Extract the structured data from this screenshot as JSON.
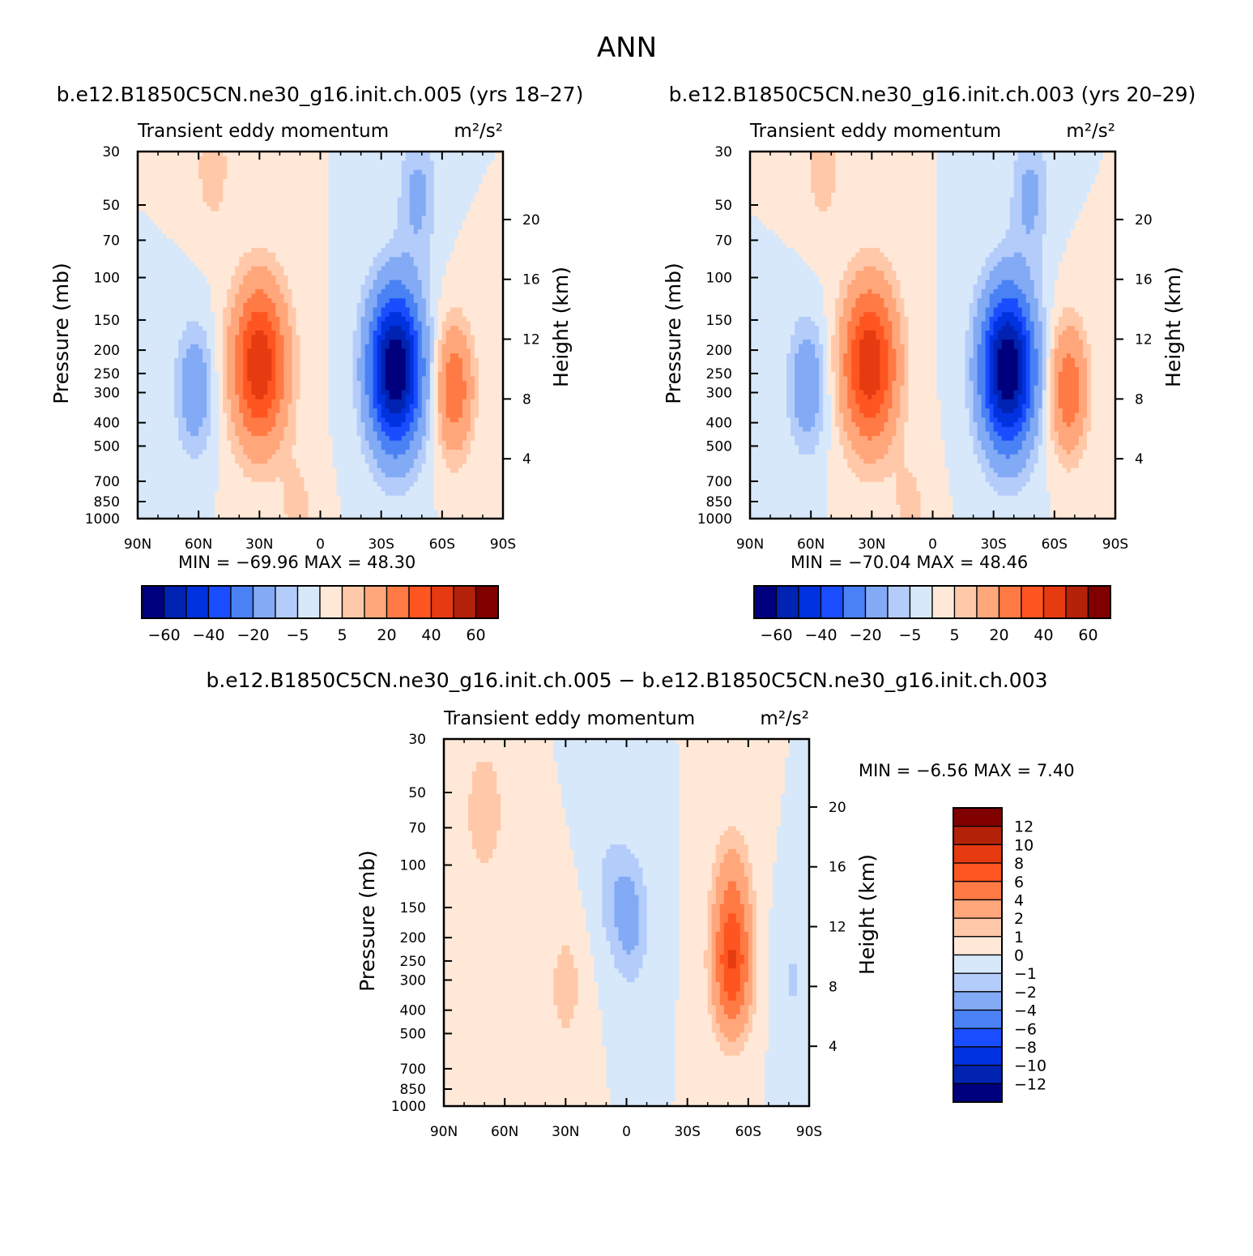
{
  "page_title": "ANN",
  "colors": {
    "seq": [
      "#00007f",
      "#0023b2",
      "#0032e0",
      "#1a4dff",
      "#4a82f5",
      "#82aaf5",
      "#b4ccfa",
      "#d7e8fa",
      "#ffe8d7",
      "#ffc8a9",
      "#ffa67a",
      "#ff7a45",
      "#ff5520",
      "#e63a10",
      "#b42209",
      "#800000"
    ]
  },
  "chart_data": [
    {
      "type": "heatmap",
      "title": "b.e12.B1850C5CN.ne30_g16.init.ch.005 (yrs 18–27)",
      "subtitle_left": "Transient eddy momentum",
      "subtitle_right": "m²/s²",
      "ylabel": "Pressure (mb)",
      "y2label": "Height (km)",
      "x_ticks": [
        "90N",
        "60N",
        "30N",
        "0",
        "30S",
        "60S",
        "90S"
      ],
      "y_ticks": [
        30,
        50,
        70,
        100,
        150,
        200,
        250,
        300,
        400,
        500,
        700,
        850,
        1000
      ],
      "y2_ticks": [
        20,
        16,
        12,
        8,
        4
      ],
      "min_max_text": "MIN =  −69.96   MAX =   48.30",
      "min": -69.96,
      "max": 48.3,
      "colorbar_labels": [
        "−60",
        "−40",
        "−20",
        "−5",
        "5",
        "20",
        "40",
        "60"
      ],
      "features": [
        {
          "lat": 30,
          "p": 230,
          "value": 48.3
        },
        {
          "lat": -37,
          "p": 240,
          "value": -69.96
        },
        {
          "lat": -66,
          "p": 290,
          "value": 28
        },
        {
          "lat": 62,
          "p": 290,
          "value": -17
        },
        {
          "lat": 53,
          "p": 35,
          "value": 8
        },
        {
          "lat": -48,
          "p": 45,
          "value": -12
        },
        {
          "lat": 11,
          "p": 970,
          "value": 7
        }
      ]
    },
    {
      "type": "heatmap",
      "title": "b.e12.B1850C5CN.ne30_g16.init.ch.003 (yrs 20–29)",
      "subtitle_left": "Transient eddy momentum",
      "subtitle_right": "m²/s²",
      "ylabel": "Pressure (mb)",
      "y2label": "Height (km)",
      "x_ticks": [
        "90N",
        "60N",
        "30N",
        "0",
        "30S",
        "60S",
        "90S"
      ],
      "y_ticks": [
        30,
        50,
        70,
        100,
        150,
        200,
        250,
        300,
        400,
        500,
        700,
        850,
        1000
      ],
      "y2_ticks": [
        20,
        16,
        12,
        8,
        4
      ],
      "min_max_text": "MIN =  −70.04   MAX =   48.46",
      "min": -70.04,
      "max": 48.46,
      "colorbar_labels": [
        "−60",
        "−40",
        "−20",
        "−5",
        "5",
        "20",
        "40",
        "60"
      ],
      "features": [
        {
          "lat": 31,
          "p": 230,
          "value": 48.46
        },
        {
          "lat": -37,
          "p": 240,
          "value": -70.04
        },
        {
          "lat": -67,
          "p": 290,
          "value": 28
        },
        {
          "lat": 62,
          "p": 280,
          "value": -18
        },
        {
          "lat": 54,
          "p": 35,
          "value": 8
        },
        {
          "lat": -48,
          "p": 45,
          "value": -12
        },
        {
          "lat": 11,
          "p": 970,
          "value": 7
        }
      ]
    },
    {
      "type": "heatmap",
      "title": "b.e12.B1850C5CN.ne30_g16.init.ch.005 − b.e12.B1850C5CN.ne30_g16.init.ch.003",
      "subtitle_left": "Transient eddy momentum",
      "subtitle_right": "m²/s²",
      "ylabel": "Pressure (mb)",
      "y2label": "Height (km)",
      "x_ticks": [
        "90N",
        "60N",
        "30N",
        "0",
        "30S",
        "60S",
        "90S"
      ],
      "y_ticks": [
        30,
        50,
        70,
        100,
        150,
        200,
        250,
        300,
        400,
        500,
        700,
        850,
        1000
      ],
      "y2_ticks": [
        20,
        16,
        12,
        8,
        4
      ],
      "min_max_text": "MIN =   −6.56   MAX =    7.40",
      "min": -6.56,
      "max": 7.4,
      "colorbar_labels": [
        "12",
        "10",
        "8",
        "6",
        "4",
        "2",
        "1",
        "0",
        "−1",
        "−2",
        "−4",
        "−6",
        "−8",
        "−10",
        "−12"
      ],
      "features": [
        {
          "lat": -52,
          "p": 270,
          "value": 7.4
        },
        {
          "lat": -52,
          "p": 130,
          "value": 3
        },
        {
          "lat": 70,
          "p": 60,
          "value": 2
        },
        {
          "lat": 30,
          "p": 320,
          "value": 1.5
        },
        {
          "lat": -2,
          "p": 170,
          "value": -2.5
        },
        {
          "lat": 8,
          "p": 120,
          "value": -1.2
        },
        {
          "lat": -82,
          "p": 300,
          "value": -1.1
        }
      ]
    }
  ]
}
